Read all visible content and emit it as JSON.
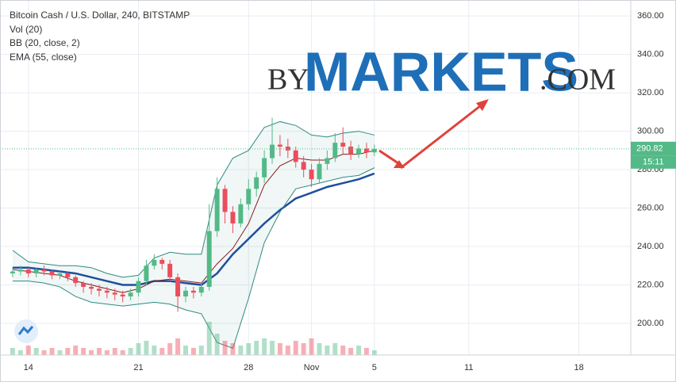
{
  "chart_data": {
    "type": "candlestick",
    "title": "Bitcoin Cash / U.S. Dollar, 240, BITSTAMP",
    "indicator_labels": [
      "Vol (20)",
      "BB (20, close, 2)",
      "EMA (55, close)"
    ],
    "watermark": {
      "prefix": "BY",
      "brand": "MARKETS",
      "suffix": ".COM"
    },
    "countdown": "15:11",
    "x": [
      -1,
      -0.5,
      0,
      0.5,
      1,
      1.5,
      2,
      2.5,
      3,
      3.5,
      4,
      4.5,
      5,
      5.5,
      6,
      6.5,
      7,
      7.5,
      8,
      8.5,
      9,
      9.5,
      10,
      10.5,
      11,
      11.5,
      12,
      12.5,
      13,
      13.5,
      14,
      14.5,
      15,
      15.5,
      16,
      16.5,
      17,
      17.5,
      18,
      18.5,
      19,
      19.5,
      20,
      20.5,
      21,
      21.5,
      22
    ],
    "open": [
      226,
      227,
      228,
      226,
      228,
      227,
      225,
      226,
      224,
      221,
      219,
      218,
      217,
      216,
      215,
      214,
      216,
      222,
      230,
      233,
      231,
      224,
      214,
      217,
      216,
      219,
      248,
      270,
      258,
      252,
      262,
      270,
      276,
      286,
      293,
      292,
      290,
      284,
      280,
      275,
      283,
      286,
      294,
      292,
      288,
      291,
      289
    ],
    "high": [
      229,
      230,
      229,
      229,
      230,
      228,
      227,
      227,
      225,
      222,
      221,
      220,
      219,
      218,
      217,
      218,
      224,
      233,
      236,
      234,
      233,
      226,
      219,
      219,
      221,
      262,
      276,
      272,
      261,
      265,
      275,
      279,
      290,
      307,
      298,
      296,
      292,
      287,
      283,
      286,
      290,
      299,
      302,
      295,
      293,
      294,
      293
    ],
    "low": [
      224,
      225,
      224,
      224,
      225,
      223,
      223,
      222,
      219,
      216,
      215,
      214,
      213,
      212,
      211,
      212,
      214,
      220,
      228,
      228,
      222,
      206,
      211,
      213,
      214,
      217,
      245,
      252,
      247,
      250,
      259,
      266,
      273,
      283,
      287,
      286,
      281,
      276,
      271,
      273,
      280,
      284,
      288,
      285,
      286,
      286,
      287
    ],
    "close": [
      227,
      228,
      226,
      228,
      227,
      225,
      226,
      224,
      221,
      219,
      218,
      217,
      216,
      215,
      214,
      216,
      222,
      230,
      233,
      231,
      224,
      214,
      217,
      216,
      219,
      248,
      270,
      258,
      252,
      262,
      270,
      276,
      286,
      293,
      292,
      290,
      284,
      280,
      275,
      283,
      286,
      294,
      292,
      288,
      291,
      289,
      290.82
    ],
    "volume": [
      3,
      2,
      4,
      3,
      2,
      3,
      2,
      3,
      4,
      3,
      2,
      3,
      2,
      3,
      2,
      3,
      5,
      6,
      4,
      3,
      5,
      7,
      4,
      3,
      4,
      14,
      9,
      6,
      5,
      4,
      5,
      6,
      7,
      6,
      5,
      4,
      6,
      5,
      7,
      5,
      4,
      5,
      4,
      3,
      4,
      3,
      2
    ],
    "up_color": "#53b987",
    "down_color": "#eb4d5c",
    "indicators": {
      "x": [
        -1,
        0,
        1,
        2,
        3,
        4,
        5,
        6,
        7,
        8,
        9,
        10,
        11,
        12,
        13,
        14,
        15,
        16,
        17,
        18,
        19,
        20,
        21,
        22
      ],
      "lines": [
        {
          "color": "#1f4e9c",
          "values": [
            229,
            229,
            228,
            227,
            226,
            224,
            222,
            220,
            220,
            222,
            222,
            221,
            220,
            226,
            236,
            244,
            252,
            259,
            265,
            268,
            271,
            273,
            275,
            278
          ]
        },
        {
          "color": "#2e8a82",
          "values": [
            238,
            232,
            231,
            230,
            230,
            229,
            226,
            224,
            225,
            234,
            237,
            236,
            236,
            272,
            286,
            290,
            302,
            305,
            303,
            298,
            297,
            299,
            300,
            298
          ]
        },
        {
          "color": "#2e8a82",
          "values": [
            222,
            222,
            221,
            219,
            214,
            211,
            210,
            209,
            210,
            211,
            210,
            207,
            205,
            190,
            187,
            213,
            242,
            258,
            270,
            272,
            274,
            276,
            277,
            281
          ]
        },
        {
          "color": "#8b1a1a",
          "values": [
            228,
            227,
            226,
            225,
            222,
            220,
            218,
            216,
            218,
            222,
            223,
            222,
            221,
            231,
            239,
            252,
            272,
            282,
            286,
            285,
            285,
            288,
            288,
            290
          ]
        }
      ]
    },
    "xlim": [
      -1.4,
      38.3
    ],
    "ylim": [
      183.5,
      365
    ],
    "xticks": [
      {
        "value": 0,
        "label": "14"
      },
      {
        "value": 7,
        "label": "21"
      },
      {
        "value": 14,
        "label": "28"
      },
      {
        "value": 18,
        "label": "Nov"
      },
      {
        "value": 22,
        "label": "5"
      },
      {
        "value": 28,
        "label": "11"
      },
      {
        "value": 35,
        "label": "18"
      }
    ],
    "yticks": [
      {
        "value": 200,
        "label": "200.00"
      },
      {
        "value": 220,
        "label": "220.00"
      },
      {
        "value": 240,
        "label": "240.00"
      },
      {
        "value": 260,
        "label": "260.00"
      },
      {
        "value": 280,
        "label": "280.00"
      },
      {
        "value": 300,
        "label": "300.00"
      },
      {
        "value": 320,
        "label": "320.00"
      },
      {
        "value": 340,
        "label": "340.00"
      },
      {
        "value": 360,
        "label": "360.00"
      }
    ],
    "grid": true
  }
}
